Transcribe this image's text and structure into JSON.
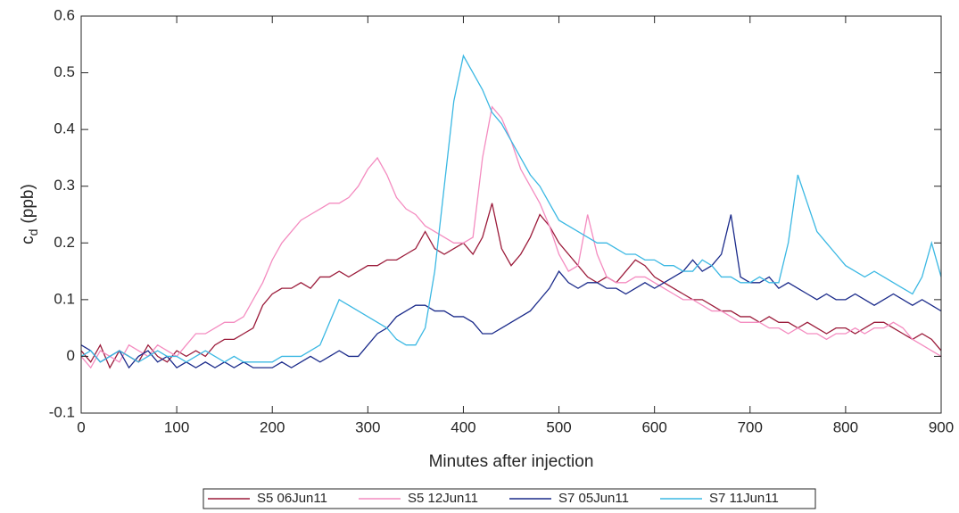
{
  "chart_data": {
    "type": "line",
    "xlabel": "Minutes after injection",
    "ylabel_parts": [
      "c",
      "d",
      "(ppb)"
    ],
    "xlim": [
      0,
      900
    ],
    "xticks": [
      0,
      100,
      200,
      300,
      400,
      500,
      600,
      700,
      800,
      900
    ],
    "ylim": [
      -0.1,
      0.6
    ],
    "yticks": [
      -0.1,
      0,
      0.1,
      0.2,
      0.3,
      0.4,
      0.5,
      0.6
    ],
    "grid": false,
    "legend": "bottom",
    "x": [
      0,
      10,
      20,
      30,
      40,
      50,
      60,
      70,
      80,
      90,
      100,
      110,
      120,
      130,
      140,
      150,
      160,
      170,
      180,
      190,
      200,
      210,
      220,
      230,
      240,
      250,
      260,
      270,
      280,
      290,
      300,
      310,
      320,
      330,
      340,
      350,
      360,
      370,
      380,
      390,
      400,
      410,
      420,
      430,
      440,
      450,
      460,
      470,
      480,
      490,
      500,
      510,
      520,
      530,
      540,
      550,
      560,
      570,
      580,
      590,
      600,
      610,
      620,
      630,
      640,
      650,
      660,
      670,
      680,
      690,
      700,
      710,
      720,
      730,
      740,
      750,
      760,
      770,
      780,
      790,
      800,
      810,
      820,
      830,
      840,
      850,
      860,
      870,
      880,
      890,
      900
    ],
    "series": [
      {
        "name": "S5 06Jun11",
        "color": "#9b1b3a",
        "values": [
          0.01,
          -0.01,
          0.02,
          -0.02,
          0.01,
          0.0,
          -0.01,
          0.02,
          0.0,
          -0.01,
          0.01,
          0.0,
          0.01,
          0.0,
          0.02,
          0.03,
          0.03,
          0.04,
          0.05,
          0.09,
          0.11,
          0.12,
          0.12,
          0.13,
          0.12,
          0.14,
          0.14,
          0.15,
          0.14,
          0.15,
          0.16,
          0.16,
          0.17,
          0.17,
          0.18,
          0.19,
          0.22,
          0.19,
          0.18,
          0.19,
          0.2,
          0.18,
          0.21,
          0.27,
          0.19,
          0.16,
          0.18,
          0.21,
          0.25,
          0.23,
          0.2,
          0.18,
          0.16,
          0.14,
          0.13,
          0.14,
          0.13,
          0.15,
          0.17,
          0.16,
          0.14,
          0.13,
          0.12,
          0.11,
          0.1,
          0.1,
          0.09,
          0.08,
          0.08,
          0.07,
          0.07,
          0.06,
          0.07,
          0.06,
          0.06,
          0.05,
          0.06,
          0.05,
          0.04,
          0.05,
          0.05,
          0.04,
          0.05,
          0.06,
          0.06,
          0.05,
          0.04,
          0.03,
          0.04,
          0.03,
          0.01
        ]
      },
      {
        "name": "S5 12Jun11",
        "color": "#f48cc0",
        "values": [
          0.0,
          -0.02,
          0.01,
          0.0,
          -0.01,
          0.02,
          0.01,
          0.0,
          0.02,
          0.01,
          0.0,
          0.02,
          0.04,
          0.04,
          0.05,
          0.06,
          0.06,
          0.07,
          0.1,
          0.13,
          0.17,
          0.2,
          0.22,
          0.24,
          0.25,
          0.26,
          0.27,
          0.27,
          0.28,
          0.3,
          0.33,
          0.35,
          0.32,
          0.28,
          0.26,
          0.25,
          0.23,
          0.22,
          0.21,
          0.2,
          0.2,
          0.21,
          0.35,
          0.44,
          0.42,
          0.38,
          0.33,
          0.3,
          0.27,
          0.23,
          0.18,
          0.15,
          0.16,
          0.25,
          0.18,
          0.14,
          0.13,
          0.13,
          0.14,
          0.14,
          0.13,
          0.12,
          0.11,
          0.1,
          0.1,
          0.09,
          0.08,
          0.08,
          0.07,
          0.06,
          0.06,
          0.06,
          0.05,
          0.05,
          0.04,
          0.05,
          0.04,
          0.04,
          0.03,
          0.04,
          0.04,
          0.05,
          0.04,
          0.05,
          0.05,
          0.06,
          0.05,
          0.03,
          0.02,
          0.01,
          0.0
        ]
      },
      {
        "name": "S7 05Jun11",
        "color": "#1a2a8a",
        "values": [
          0.02,
          0.01,
          -0.01,
          0.0,
          0.01,
          -0.02,
          0.0,
          0.01,
          -0.01,
          0.0,
          -0.02,
          -0.01,
          -0.02,
          -0.01,
          -0.02,
          -0.01,
          -0.02,
          -0.01,
          -0.02,
          -0.02,
          -0.02,
          -0.01,
          -0.02,
          -0.01,
          0.0,
          -0.01,
          0.0,
          0.01,
          0.0,
          0.0,
          0.02,
          0.04,
          0.05,
          0.07,
          0.08,
          0.09,
          0.09,
          0.08,
          0.08,
          0.07,
          0.07,
          0.06,
          0.04,
          0.04,
          0.05,
          0.06,
          0.07,
          0.08,
          0.1,
          0.12,
          0.15,
          0.13,
          0.12,
          0.13,
          0.13,
          0.12,
          0.12,
          0.11,
          0.12,
          0.13,
          0.12,
          0.13,
          0.14,
          0.15,
          0.17,
          0.15,
          0.16,
          0.18,
          0.25,
          0.14,
          0.13,
          0.13,
          0.14,
          0.12,
          0.13,
          0.12,
          0.11,
          0.1,
          0.11,
          0.1,
          0.1,
          0.11,
          0.1,
          0.09,
          0.1,
          0.11,
          0.1,
          0.09,
          0.1,
          0.09,
          0.08
        ]
      },
      {
        "name": "S7 11Jun11",
        "color": "#3bb8e3",
        "values": [
          0.0,
          0.01,
          -0.01,
          0.0,
          0.01,
          0.0,
          -0.01,
          0.0,
          0.01,
          0.0,
          0.0,
          -0.01,
          0.0,
          0.01,
          0.0,
          -0.01,
          0.0,
          -0.01,
          -0.01,
          -0.01,
          -0.01,
          0.0,
          0.0,
          0.0,
          0.01,
          0.02,
          0.06,
          0.1,
          0.09,
          0.08,
          0.07,
          0.06,
          0.05,
          0.03,
          0.02,
          0.02,
          0.05,
          0.15,
          0.3,
          0.45,
          0.53,
          0.5,
          0.47,
          0.43,
          0.41,
          0.38,
          0.35,
          0.32,
          0.3,
          0.27,
          0.24,
          0.23,
          0.22,
          0.21,
          0.2,
          0.2,
          0.19,
          0.18,
          0.18,
          0.17,
          0.17,
          0.16,
          0.16,
          0.15,
          0.15,
          0.17,
          0.16,
          0.14,
          0.14,
          0.13,
          0.13,
          0.14,
          0.13,
          0.13,
          0.2,
          0.32,
          0.27,
          0.22,
          0.2,
          0.18,
          0.16,
          0.15,
          0.14,
          0.15,
          0.14,
          0.13,
          0.12,
          0.11,
          0.14,
          0.2,
          0.14
        ]
      }
    ]
  }
}
